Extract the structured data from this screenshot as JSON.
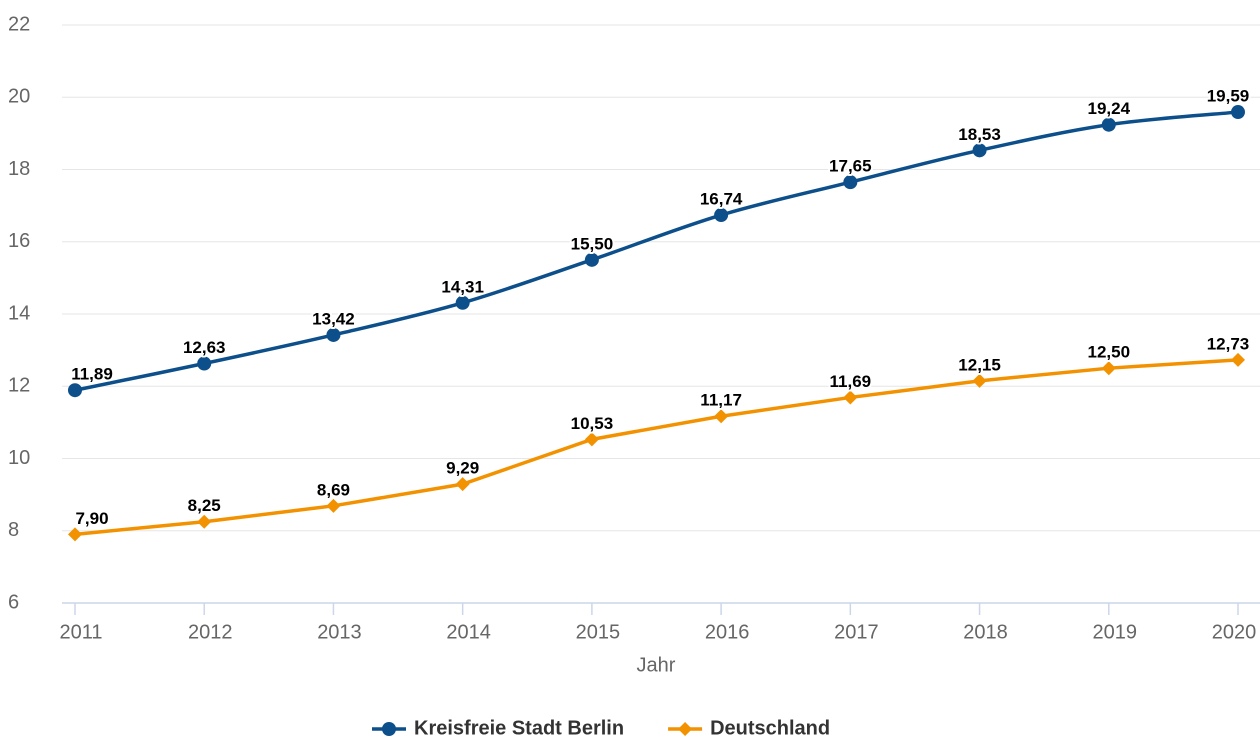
{
  "chart_data": {
    "type": "line",
    "x_label": "Jahr",
    "categories": [
      "2011",
      "2012",
      "2013",
      "2014",
      "2015",
      "2016",
      "2017",
      "2018",
      "2019",
      "2020"
    ],
    "series": [
      {
        "name": "Kreisfreie Stadt Berlin",
        "color": "#0d4f8b",
        "marker": "circle",
        "smooth": true,
        "values": [
          11.89,
          12.63,
          13.42,
          14.31,
          15.5,
          16.74,
          17.65,
          18.53,
          19.24,
          19.59
        ],
        "value_labels": [
          "11,89",
          "12,63",
          "13,42",
          "14,31",
          "15,50",
          "16,74",
          "17,65",
          "18,53",
          "19,24",
          "19,59"
        ]
      },
      {
        "name": "Deutschland",
        "color": "#f39200",
        "marker": "diamond",
        "smooth": false,
        "values": [
          7.9,
          8.25,
          8.69,
          9.29,
          10.53,
          11.17,
          11.69,
          12.15,
          12.5,
          12.73
        ],
        "value_labels": [
          "7,90",
          "8,25",
          "8,69",
          "9,29",
          "10,53",
          "11,17",
          "11,69",
          "12,15",
          "12,50",
          "12,73"
        ]
      }
    ],
    "ylim": [
      6,
      22
    ],
    "yticks": [
      6,
      8,
      10,
      12,
      14,
      16,
      18,
      20,
      22
    ],
    "grid": true,
    "legend": "bottom"
  }
}
